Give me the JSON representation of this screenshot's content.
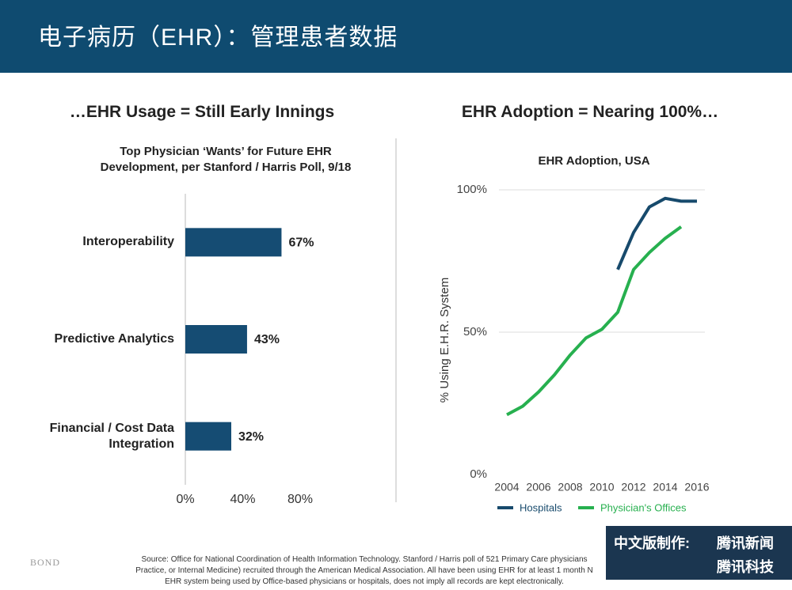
{
  "header": {
    "title": "电子病历（EHR）：管理患者数据"
  },
  "sections": [
    {
      "heading": "…EHR Usage = Still Early Innings"
    },
    {
      "heading": "EHR Adoption = Nearing 100%…"
    }
  ],
  "chart_data": [
    {
      "type": "bar",
      "orientation": "horizontal",
      "title": "Top Physician ‘Wants’ for Future EHR Development, per Stanford / Harris Poll, 9/18",
      "categories": [
        "Interoperability",
        "Predictive Analytics",
        "Financial / Cost Data Integration"
      ],
      "values": [
        67,
        43,
        32
      ],
      "value_labels": [
        "67%",
        "43%",
        "32%"
      ],
      "color": "#154c73",
      "xlim": [
        0,
        80
      ],
      "xticks": [
        {
          "value": 0,
          "label": "0%"
        },
        {
          "value": 40,
          "label": "40%"
        },
        {
          "value": 80,
          "label": "80%"
        }
      ]
    },
    {
      "type": "line",
      "title": "EHR Adoption, USA",
      "y_label": "% Using E.H.R. System",
      "x": [
        2004,
        2005,
        2006,
        2007,
        2008,
        2009,
        2010,
        2011,
        2012,
        2013,
        2014,
        2015,
        2016
      ],
      "series": [
        {
          "name": "Hospitals",
          "color": "#174a6c",
          "values": [
            null,
            null,
            null,
            null,
            null,
            null,
            null,
            72,
            85,
            94,
            97,
            96,
            96
          ]
        },
        {
          "name": "Physician's Offices",
          "color": "#27b04f",
          "values": [
            21,
            24,
            29,
            35,
            42,
            48,
            51,
            57,
            72,
            78,
            83,
            87,
            null
          ]
        }
      ],
      "xlim": [
        2004,
        2016
      ],
      "xticks": [
        2004,
        2006,
        2008,
        2010,
        2012,
        2014,
        2016
      ],
      "ylim": [
        0,
        100
      ],
      "yticks": [
        {
          "value": 0,
          "label": "0%"
        },
        {
          "value": 50,
          "label": "50%"
        },
        {
          "value": 100,
          "label": "100%"
        }
      ],
      "grid": true,
      "legend": "bottom"
    }
  ],
  "footer": {
    "brand": "BOND",
    "source": [
      "Source: Office for National Coordination of Health Information Technology. Stanford / Harris poll of 521 Primary Care physicians",
      "Practice, or Internal Medicine) recruited through the American Medical Association.  All have been using EHR for at least 1 month N",
      "EHR system being used by Office-based physicians or hospitals, does not imply all records are kept electronically."
    ],
    "credit_label": "中文版制作:",
    "credits": [
      "腾讯新闻",
      "腾讯科技"
    ]
  }
}
